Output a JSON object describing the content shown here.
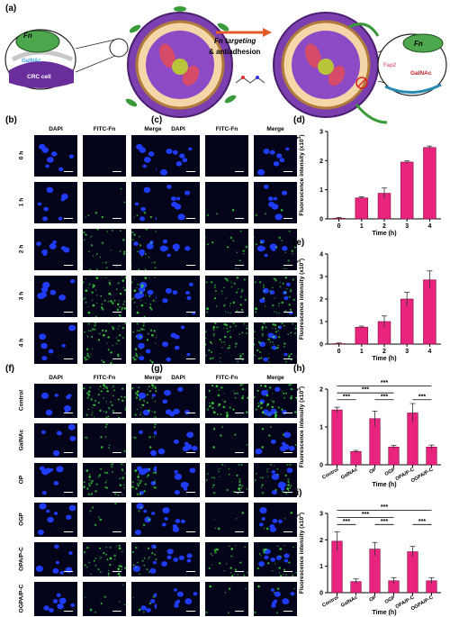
{
  "panel_a": {
    "label": "(a)",
    "fn_left": "Fn",
    "galnac_left": "GalNAc",
    "crc_cell": "CRC cell",
    "arrow_text_1": "Fn targeting",
    "arrow_text_2": "& antiadhesion",
    "fn_right": "Fn",
    "fap2": "Fap2",
    "galnac_right": "GalNAc"
  },
  "grid_headers": {
    "dapi": "DAPI",
    "fitc": "FITC-Fn",
    "merge": "Merge"
  },
  "panel_b": {
    "label": "(b)",
    "rows": [
      "0 h",
      "1 h",
      "2 h",
      "3 h",
      "4 h"
    ]
  },
  "panel_c": {
    "label": "(c)"
  },
  "panel_f": {
    "label": "(f)",
    "rows": [
      "Control",
      "GalNAc",
      "OP",
      "OGP",
      "OPA/P-C",
      "OGPA/P-C"
    ]
  },
  "panel_g": {
    "label": "(g)"
  },
  "colors": {
    "bar": "#e8247e",
    "dapi": "#1f3cff",
    "fitc": "#3fd13f",
    "cell_bg": "#03031a"
  },
  "chart_data": [
    {
      "panel": "(d)",
      "type": "bar",
      "categories": [
        "0",
        "1",
        "2",
        "3",
        "4"
      ],
      "values": [
        0.02,
        0.72,
        0.88,
        1.95,
        2.45
      ],
      "errors": [
        0.03,
        0.04,
        0.18,
        0.04,
        0.05
      ],
      "xlabel": "Time (h)",
      "ylabel": "Fluorescence intensity (x10",
      "ylabel_sup": "3",
      "ylabel_end": ")",
      "ylim": [
        0,
        3
      ],
      "yticks": [
        "0",
        "1",
        "2",
        "3"
      ]
    },
    {
      "panel": "(e)",
      "type": "bar",
      "categories": [
        "0",
        "1",
        "2",
        "3",
        "4"
      ],
      "values": [
        0.02,
        0.75,
        1.0,
        2.0,
        2.85
      ],
      "errors": [
        0.03,
        0.05,
        0.25,
        0.3,
        0.4
      ],
      "xlabel": "Time (h)",
      "ylabel": "Fluorescence intensity (x10",
      "ylabel_sup": "3",
      "ylabel_end": ")",
      "ylim": [
        0,
        4
      ],
      "yticks": [
        "0",
        "1",
        "2",
        "3",
        "4"
      ]
    },
    {
      "panel": "(h)",
      "type": "bar",
      "categories": [
        "Control",
        "GalNAc",
        "OP",
        "OGP",
        "OPA/P-C",
        "OGPA/P-C"
      ],
      "values": [
        1.45,
        0.35,
        1.22,
        0.47,
        1.37,
        0.47
      ],
      "errors": [
        0.07,
        0.03,
        0.2,
        0.04,
        0.25,
        0.05
      ],
      "xlabel": "Time (h)",
      "ylabel": "Fluorescence intensity (x10",
      "ylabel_sup": "3",
      "ylabel_end": ")",
      "ylim": [
        0,
        2
      ],
      "yticks": [
        "0",
        "1",
        "2"
      ],
      "significance": [
        "***",
        "***",
        "***",
        "***",
        "***"
      ]
    },
    {
      "panel": "(i)",
      "type": "bar",
      "categories": [
        "Control",
        "GalNAc",
        "OP",
        "OGP",
        "OPA/P-C",
        "OGPA/P-C"
      ],
      "values": [
        1.95,
        0.42,
        1.65,
        0.45,
        1.55,
        0.45
      ],
      "errors": [
        0.35,
        0.1,
        0.25,
        0.12,
        0.2,
        0.12
      ],
      "xlabel": "Time (h)",
      "ylabel": "Fluorescence intensity (x10",
      "ylabel_sup": "3",
      "ylabel_end": ")",
      "ylim": [
        0,
        3
      ],
      "yticks": [
        "0",
        "1",
        "2",
        "3"
      ],
      "significance": [
        "***",
        "***",
        "***",
        "***",
        "***"
      ]
    }
  ]
}
